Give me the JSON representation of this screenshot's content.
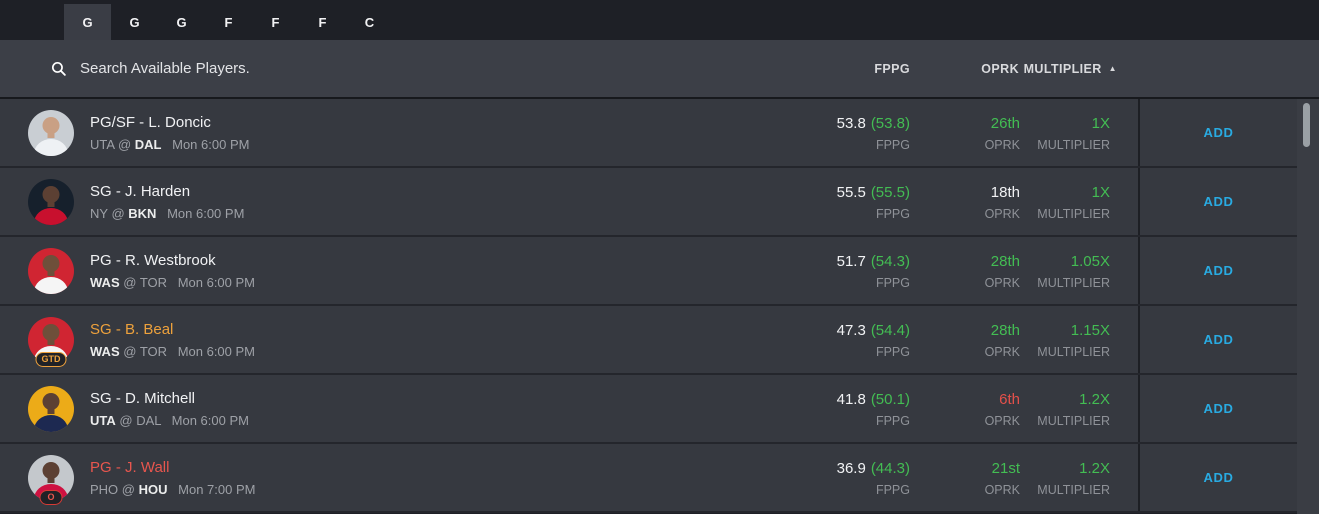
{
  "tabs": [
    {
      "label": "G",
      "selected": true
    },
    {
      "label": "G",
      "selected": false
    },
    {
      "label": "G",
      "selected": false
    },
    {
      "label": "F",
      "selected": false
    },
    {
      "label": "F",
      "selected": false
    },
    {
      "label": "F",
      "selected": false
    },
    {
      "label": "C",
      "selected": false
    }
  ],
  "search": {
    "placeholder": "Search Available Players."
  },
  "headers": {
    "fppg": "FPPG",
    "oprk": "OPRK",
    "multiplier": "MULTIPLIER",
    "sort_arrow": "▲"
  },
  "labels": {
    "fppg": "FPPG",
    "oprk": "OPRK",
    "multiplier": "MULTIPLIER",
    "add": "ADD",
    "at_separator": "@",
    "name_separator": " - "
  },
  "colors": {
    "white": "#f1f2f4",
    "green": "#43bd53",
    "red": "#e4504a",
    "orange": "#eda13c",
    "out_red": "#e8564e",
    "add_blue": "#29abe2"
  },
  "players": [
    {
      "position": "PG/SF",
      "name": "L. Doncic",
      "status": "active",
      "away": "UTA",
      "home": "DAL",
      "player_team": "home",
      "time": "Mon 6:00 PM",
      "fppg": "53.8",
      "fppg_proj": "(53.8)",
      "oprk": "26th",
      "oprk_color": "green",
      "multiplier": "1X",
      "multiplier_color": "green",
      "avatar_bg": "#c9ced3",
      "jersey": "#eef1f4",
      "skin": "#c9a084",
      "badge": null
    },
    {
      "position": "SG",
      "name": "J. Harden",
      "status": "active",
      "away": "NY",
      "home": "BKN",
      "player_team": "home",
      "time": "Mon 6:00 PM",
      "fppg": "55.5",
      "fppg_proj": "(55.5)",
      "oprk": "18th",
      "oprk_color": "white",
      "multiplier": "1X",
      "multiplier_color": "green",
      "avatar_bg": "#16202c",
      "jersey": "#c8102e",
      "skin": "#5c4033",
      "badge": null
    },
    {
      "position": "PG",
      "name": "R. Westbrook",
      "status": "active",
      "away": "WAS",
      "home": "TOR",
      "player_team": "away",
      "time": "Mon 6:00 PM",
      "fppg": "51.7",
      "fppg_proj": "(54.3)",
      "oprk": "28th",
      "oprk_color": "green",
      "multiplier": "1.05X",
      "multiplier_color": "green",
      "avatar_bg": "#d02532",
      "jersey": "#f5f5f5",
      "skin": "#6e4f3a",
      "badge": null
    },
    {
      "position": "SG",
      "name": "B. Beal",
      "status": "gtd",
      "away": "WAS",
      "home": "TOR",
      "player_team": "away",
      "time": "Mon 6:00 PM",
      "fppg": "47.3",
      "fppg_proj": "(54.4)",
      "oprk": "28th",
      "oprk_color": "green",
      "multiplier": "1.15X",
      "multiplier_color": "green",
      "avatar_bg": "#d02532",
      "jersey": "#f5f5f5",
      "skin": "#6e4f3a",
      "badge": {
        "text": "GTD",
        "type": "gtd"
      }
    },
    {
      "position": "SG",
      "name": "D. Mitchell",
      "status": "active",
      "away": "UTA",
      "home": "DAL",
      "player_team": "away",
      "time": "Mon 6:00 PM",
      "fppg": "41.8",
      "fppg_proj": "(50.1)",
      "oprk": "6th",
      "oprk_color": "red",
      "multiplier": "1.2X",
      "multiplier_color": "green",
      "avatar_bg": "#ecab18",
      "jersey": "#1d2951",
      "skin": "#5c4033",
      "badge": null
    },
    {
      "position": "PG",
      "name": "J. Wall",
      "status": "out",
      "away": "PHO",
      "home": "HOU",
      "player_team": "home",
      "time": "Mon 7:00 PM",
      "fppg": "36.9",
      "fppg_proj": "(44.3)",
      "oprk": "21st",
      "oprk_color": "green",
      "multiplier": "1.2X",
      "multiplier_color": "green",
      "avatar_bg": "#c4c8cc",
      "jersey": "#ce1141",
      "skin": "#5c4033",
      "badge": {
        "text": "O",
        "type": "out"
      }
    }
  ]
}
